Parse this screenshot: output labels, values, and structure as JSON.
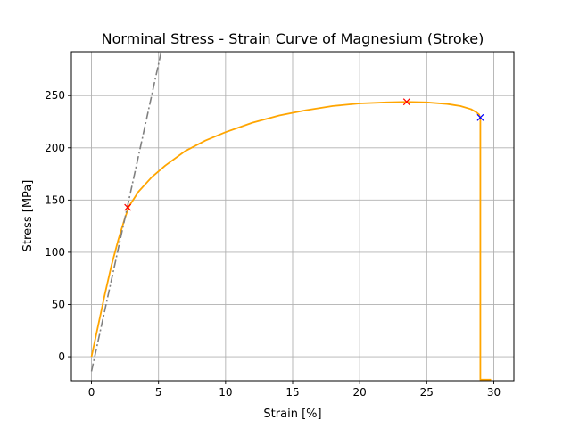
{
  "chart_data": {
    "type": "line",
    "title": "Norminal Stress - Strain Curve of Magnesium (Stroke)",
    "xlabel": "Strain [%]",
    "ylabel": "Stress [MPa]",
    "xlim": [
      -1.5,
      31.5
    ],
    "ylim": [
      -23,
      292
    ],
    "xticks": [
      0,
      5,
      10,
      15,
      20,
      25,
      30
    ],
    "yticks": [
      0,
      50,
      100,
      150,
      200,
      250
    ],
    "grid": true,
    "colors": {
      "curve": "#ffa500",
      "offset_line": "#808080",
      "marker_red": "#ff0000",
      "marker_blue": "#0000ff"
    },
    "series": [
      {
        "style": "line",
        "x": [
          0,
          0.5,
          1.0,
          1.5,
          2.0,
          2.5,
          2.8,
          3.5,
          4.5,
          5.5,
          7.0,
          8.5,
          10.0,
          12.0,
          14.0,
          16.0,
          18.0,
          20.0,
          22.0,
          23.5,
          25.0,
          26.5,
          27.5,
          28.3,
          28.7,
          28.9,
          28.95,
          29.0,
          29.0,
          29.1,
          29.8
        ],
        "y": [
          0,
          30,
          60,
          88,
          112,
          133,
          144,
          158,
          172,
          183,
          197,
          207,
          215,
          224,
          231,
          236,
          240,
          242.5,
          243.5,
          244,
          243.5,
          242,
          240,
          237,
          234,
          232,
          230,
          229,
          -22,
          -22,
          -22
        ]
      },
      {
        "style": "dashdot",
        "x": [
          0,
          5.2
        ],
        "y": [
          -14,
          292
        ]
      }
    ],
    "markers": [
      {
        "x": 2.7,
        "y": 143,
        "symbol": "x",
        "color": "#ff0000"
      },
      {
        "x": 23.5,
        "y": 244,
        "symbol": "x",
        "color": "#ff0000"
      },
      {
        "x": 29.0,
        "y": 229,
        "symbol": "x",
        "color": "#0000ff"
      }
    ]
  }
}
